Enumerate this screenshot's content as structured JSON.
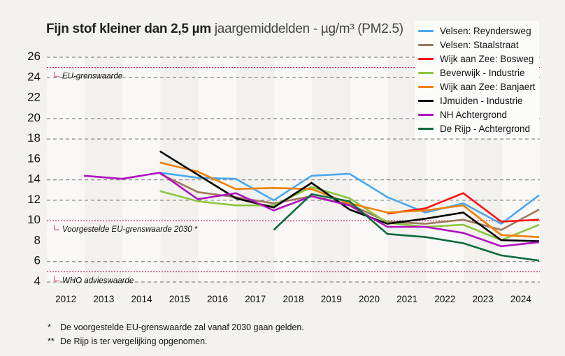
{
  "chart_data": {
    "type": "line",
    "title": "Fijn stof kleiner dan 2,5 µm",
    "subtitle": "jaargemiddelden - µg/m³ (PM2.5)",
    "xlabel": "",
    "ylabel": "",
    "categories": [
      "2012",
      "2013",
      "2014",
      "2015",
      "2016",
      "2017",
      "2018",
      "2019",
      "2020",
      "2021",
      "2022",
      "2023",
      "2024"
    ],
    "y_ticks": [
      4,
      6,
      8,
      10,
      12,
      14,
      16,
      18,
      20,
      22,
      24,
      26
    ],
    "y_gridlines": [
      4,
      6,
      12,
      14,
      18,
      20,
      24,
      26
    ],
    "ylim": [
      4,
      26
    ],
    "grid": true,
    "legend_position": "top-right",
    "reference_lines": [
      {
        "value": 25,
        "label": "EU-grenswaarde",
        "color": "#c8175d"
      },
      {
        "value": 10,
        "label": "Voorgestelde EU-grenswaarde 2030 *",
        "color": "#c8175d"
      },
      {
        "value": 5,
        "label": "WHO advieswaarde",
        "color": "#c8175d"
      }
    ],
    "series": [
      {
        "name": "Velsen: Reyndersweg",
        "color": "#4aa8f0",
        "values": [
          null,
          null,
          14.7,
          14.2,
          14.1,
          12.0,
          14.4,
          14.6,
          12.3,
          10.8,
          11.7,
          9.7,
          12.5
        ]
      },
      {
        "name": "Velsen: Staalstraat",
        "color": "#a0785a",
        "values": [
          null,
          null,
          14.6,
          12.8,
          12.3,
          11.7,
          12.4,
          11.6,
          9.9,
          9.7,
          10.1,
          9.1,
          11.1
        ]
      },
      {
        "name": "Wijk aan Zee: Bosweg",
        "color": "#ff1010",
        "values": [
          null,
          null,
          null,
          null,
          null,
          null,
          null,
          null,
          10.7,
          11.2,
          12.7,
          9.9,
          10.1
        ]
      },
      {
        "name": "Beverwijk - Industrie",
        "color": "#8cc63f",
        "values": [
          null,
          null,
          12.9,
          11.9,
          11.5,
          11.5,
          13.3,
          12.2,
          9.8,
          9.4,
          9.6,
          8.1,
          9.6
        ]
      },
      {
        "name": "Wijk aan Zee: Banjaert",
        "color": "#f08000",
        "values": [
          null,
          null,
          15.7,
          14.8,
          13.1,
          13.2,
          13.1,
          11.7,
          10.8,
          11.0,
          11.5,
          8.6,
          8.4
        ]
      },
      {
        "name": "IJmuiden - Industrie",
        "color": "#000000",
        "values": [
          null,
          null,
          16.8,
          14.5,
          12.2,
          11.3,
          13.7,
          11.1,
          9.7,
          10.2,
          10.8,
          8.1,
          8.0
        ]
      },
      {
        "name": "NH Achtergrond",
        "color": "#b010c0",
        "values": [
          14.4,
          14.1,
          14.7,
          12.1,
          12.7,
          11.0,
          12.4,
          11.5,
          9.4,
          9.4,
          8.8,
          7.5,
          7.9
        ]
      },
      {
        "name": "De Rijp - Achtergrond",
        "color": "#0b6b3a",
        "values": [
          null,
          null,
          null,
          null,
          null,
          9.1,
          12.6,
          11.9,
          8.7,
          8.4,
          7.8,
          6.6,
          6.1
        ]
      }
    ]
  },
  "footnotes": [
    {
      "mark": "*",
      "text": "De voorgestelde EU-grenswaarde zal vanaf 2030 gaan gelden."
    },
    {
      "mark": "**",
      "text": "De Rijp is ter vergelijking opgenomen."
    }
  ]
}
